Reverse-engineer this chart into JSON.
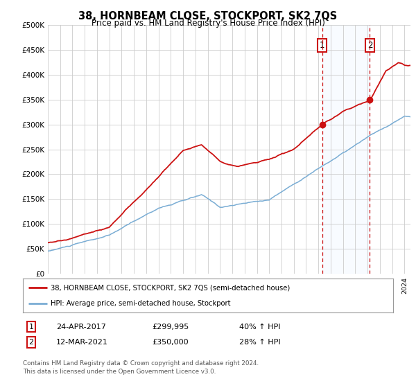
{
  "title": "38, HORNBEAM CLOSE, STOCKPORT, SK2 7QS",
  "subtitle": "Price paid vs. HM Land Registry's House Price Index (HPI)",
  "ylabel_ticks": [
    "£0",
    "£50K",
    "£100K",
    "£150K",
    "£200K",
    "£250K",
    "£300K",
    "£350K",
    "£400K",
    "£450K",
    "£500K"
  ],
  "ytick_values": [
    0,
    50000,
    100000,
    150000,
    200000,
    250000,
    300000,
    350000,
    400000,
    450000,
    500000
  ],
  "ylim": [
    0,
    500000
  ],
  "xlim_start": 1995.0,
  "xlim_end": 2024.5,
  "hpi_color": "#7aadd4",
  "price_color": "#cc1111",
  "sale1_date": 2017.31,
  "sale1_price": 299995,
  "sale2_date": 2021.19,
  "sale2_price": 350000,
  "vline_color": "#cc1111",
  "bg_color": "#ffffff",
  "grid_color": "#cccccc",
  "highlight_color": "#ddeeff",
  "legend_line1": "38, HORNBEAM CLOSE, STOCKPORT, SK2 7QS (semi-detached house)",
  "legend_line2": "HPI: Average price, semi-detached house, Stockport",
  "table_row1": [
    "1",
    "24-APR-2017",
    "£299,995",
    "40% ↑ HPI"
  ],
  "table_row2": [
    "2",
    "12-MAR-2021",
    "£350,000",
    "28% ↑ HPI"
  ],
  "footnote": "Contains HM Land Registry data © Crown copyright and database right 2024.\nThis data is licensed under the Open Government Licence v3.0."
}
